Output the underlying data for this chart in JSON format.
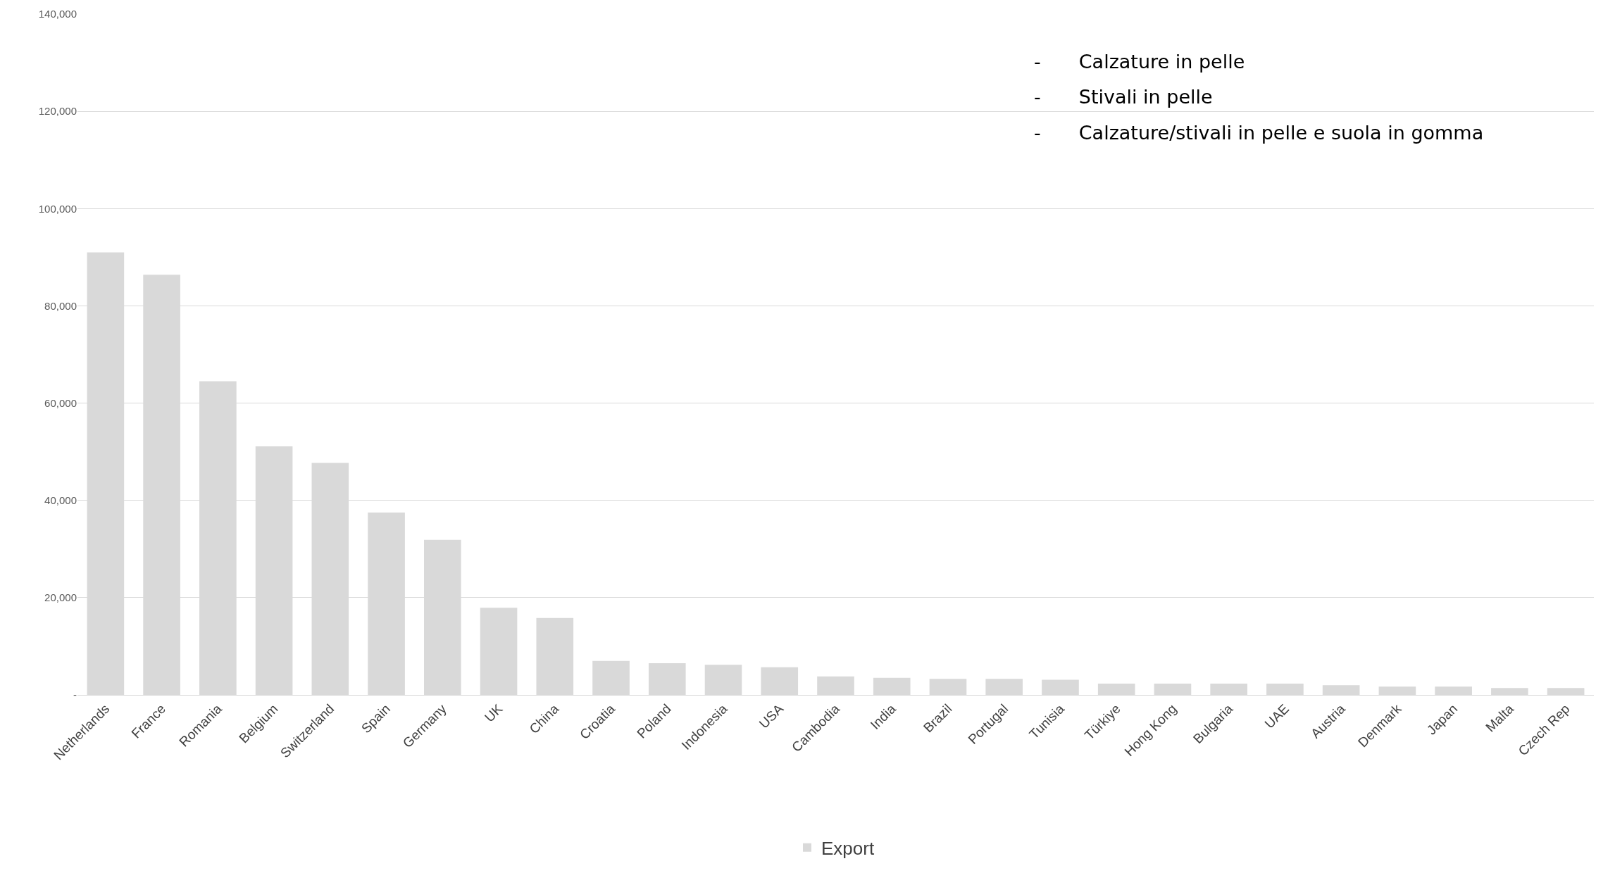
{
  "chart_data": {
    "type": "bar",
    "categories": [
      "Netherlands",
      "France",
      "Romania",
      "Belgium",
      "Switzerland",
      "Spain",
      "Germany",
      "UK",
      "China",
      "Croatia",
      "Poland",
      "Indonesia",
      "USA",
      "Cambodia",
      "India",
      "Brazil",
      "Portugal",
      "Tunisia",
      "Türkiye",
      "Hong Kong",
      "Bulgaria",
      "UAE",
      "Austria",
      "Denmark",
      "Japan",
      "Malta",
      "Czech Rep"
    ],
    "series": [
      {
        "name": "Export",
        "color": "#d9d9d9",
        "values": [
          91000,
          86400,
          64500,
          51100,
          47700,
          37500,
          31900,
          17900,
          15800,
          7000,
          6500,
          6200,
          5700,
          3800,
          3500,
          3300,
          3300,
          3100,
          2300,
          2300,
          2300,
          2300,
          2000,
          1700,
          1700,
          1400,
          1400
        ]
      }
    ],
    "ylim": [
      0,
      140000
    ],
    "yticks": [
      {
        "value": 0,
        "label": "-"
      },
      {
        "value": 20000,
        "label": "20,000"
      },
      {
        "value": 40000,
        "label": "40,000"
      },
      {
        "value": 60000,
        "label": "60,000"
      },
      {
        "value": 80000,
        "label": "80,000"
      },
      {
        "value": 100000,
        "label": "100,000"
      },
      {
        "value": 120000,
        "label": "120,000"
      },
      {
        "value": 140000,
        "label": "140,000"
      }
    ],
    "grid": "y",
    "legend": "bottom",
    "annotations": [
      "-  Calzature in pelle",
      "-  Stivali in pelle",
      "-  Calzature/stivali in pelle e suola in gomma"
    ]
  }
}
